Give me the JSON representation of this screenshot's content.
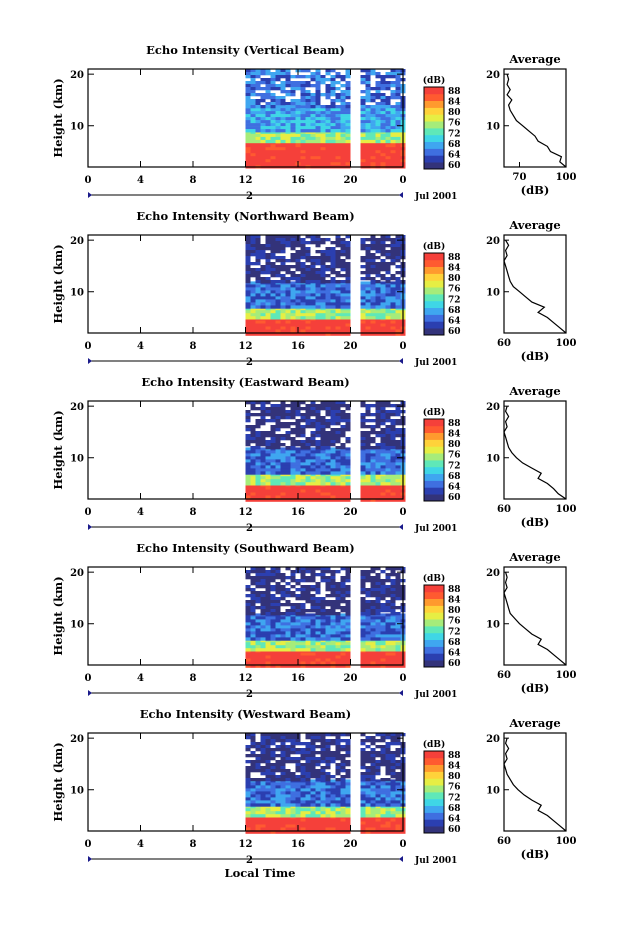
{
  "x_label": "Local Time",
  "colors": {
    "colorbar": [
      "#33337a",
      "#2b3fb0",
      "#3f6fe0",
      "#3fa6f0",
      "#3fd6e6",
      "#5fe8b8",
      "#a6ec7a",
      "#e6ee44",
      "#ffd23a",
      "#ff9a2e",
      "#ff5a30",
      "#f5403a"
    ],
    "profile_line": "#000000"
  },
  "chart_data": [
    {
      "type": "heatmap",
      "title": "Echo Intensity (Vertical Beam)",
      "ylabel": "Height (km)",
      "x_ticks": [
        "0",
        "4",
        "8",
        "12",
        "16",
        "20",
        "0"
      ],
      "y_ticks": [
        "20",
        "10"
      ],
      "date_marker": "2",
      "date_label": "Jul 2001",
      "colorbar_unit": "(dB)",
      "colorbar_ticks": [
        "88",
        "84",
        "80",
        "76",
        "72",
        "68",
        "64",
        "60"
      ],
      "data_start_hour": 12,
      "gap_hours": [
        20.0,
        20.6
      ],
      "layers": [
        {
          "from_km": 2,
          "to_km": 7,
          "level": "88"
        },
        {
          "from_km": 7,
          "to_km": 9,
          "level": "76"
        },
        {
          "from_km": 9,
          "to_km": 14,
          "level": "68"
        },
        {
          "from_km": 14,
          "to_km": 21,
          "level": "64"
        }
      ],
      "profile": {
        "title": "Average",
        "x_ticks": [
          "70",
          "100"
        ],
        "y_ticks": [
          "20",
          "10"
        ],
        "xlabel": "(dB)",
        "xlim": [
          60,
          100
        ],
        "heights_km": [
          2,
          3,
          4,
          5,
          6,
          7,
          8,
          9,
          10,
          11,
          12,
          13,
          14,
          15,
          16,
          17,
          18,
          19,
          20
        ],
        "values_db": [
          100,
          96,
          97,
          90,
          88,
          82,
          80,
          76,
          72,
          68,
          66,
          64,
          63,
          65,
          62,
          64,
          62,
          63,
          62
        ]
      }
    },
    {
      "type": "heatmap",
      "title": "Echo Intensity (Northward Beam)",
      "ylabel": "Height (km)",
      "x_ticks": [
        "0",
        "4",
        "8",
        "12",
        "16",
        "20",
        "0"
      ],
      "y_ticks": [
        "20",
        "10"
      ],
      "date_marker": "2",
      "date_label": "Jul 2001",
      "colorbar_unit": "(dB)",
      "colorbar_ticks": [
        "88",
        "84",
        "80",
        "76",
        "72",
        "68",
        "64",
        "60"
      ],
      "data_start_hour": 12,
      "gap_hours": [
        20.0,
        20.6
      ],
      "layers": [
        {
          "from_km": 2,
          "to_km": 5,
          "level": "88"
        },
        {
          "from_km": 5,
          "to_km": 7,
          "level": "76"
        },
        {
          "from_km": 7,
          "to_km": 12,
          "level": "64"
        },
        {
          "from_km": 12,
          "to_km": 21,
          "level": "60"
        }
      ],
      "profile": {
        "title": "Average",
        "x_ticks": [
          "60",
          "100"
        ],
        "y_ticks": [
          "20",
          "10"
        ],
        "xlabel": "(dB)",
        "xlim": [
          60,
          100
        ],
        "heights_km": [
          2,
          3,
          4,
          5,
          6,
          7,
          8,
          9,
          10,
          11,
          12,
          13,
          14,
          15,
          16,
          17,
          18,
          19,
          20
        ],
        "values_db": [
          100,
          96,
          92,
          88,
          82,
          86,
          78,
          74,
          70,
          66,
          64,
          63,
          62,
          61,
          60,
          62,
          61,
          63,
          61
        ]
      }
    },
    {
      "type": "heatmap",
      "title": "Echo Intensity (Eastward Beam)",
      "ylabel": "Height (km)",
      "x_ticks": [
        "0",
        "4",
        "8",
        "12",
        "16",
        "20",
        "0"
      ],
      "y_ticks": [
        "20",
        "10"
      ],
      "date_marker": "2",
      "date_label": "Jul 2001",
      "colorbar_unit": "(dB)",
      "colorbar_ticks": [
        "88",
        "84",
        "80",
        "76",
        "72",
        "68",
        "64",
        "60"
      ],
      "data_start_hour": 12,
      "gap_hours": [
        20.0,
        20.6
      ],
      "layers": [
        {
          "from_km": 2,
          "to_km": 5,
          "level": "88"
        },
        {
          "from_km": 5,
          "to_km": 7,
          "level": "76"
        },
        {
          "from_km": 7,
          "to_km": 12,
          "level": "64"
        },
        {
          "from_km": 12,
          "to_km": 21,
          "level": "60"
        }
      ],
      "profile": {
        "title": "Average",
        "x_ticks": [
          "60",
          "100"
        ],
        "y_ticks": [
          "20",
          "10"
        ],
        "xlabel": "(dB)",
        "xlim": [
          60,
          100
        ],
        "heights_km": [
          2,
          3,
          4,
          5,
          6,
          7,
          8,
          9,
          10,
          11,
          12,
          13,
          14,
          15,
          16,
          17,
          18,
          19,
          20
        ],
        "values_db": [
          100,
          95,
          92,
          88,
          82,
          84,
          78,
          72,
          68,
          65,
          63,
          62,
          61,
          60,
          62,
          61,
          63,
          61,
          62
        ]
      }
    },
    {
      "type": "heatmap",
      "title": "Echo Intensity (Southward Beam)",
      "ylabel": "Height (km)",
      "x_ticks": [
        "0",
        "4",
        "8",
        "12",
        "16",
        "20",
        "0"
      ],
      "y_ticks": [
        "20",
        "10"
      ],
      "date_marker": "2",
      "date_label": "Jul 2001",
      "colorbar_unit": "(dB)",
      "colorbar_ticks": [
        "88",
        "84",
        "80",
        "76",
        "72",
        "68",
        "64",
        "60"
      ],
      "data_start_hour": 12,
      "gap_hours": [
        20.0,
        20.6
      ],
      "layers": [
        {
          "from_km": 2,
          "to_km": 5,
          "level": "88"
        },
        {
          "from_km": 5,
          "to_km": 7,
          "level": "76"
        },
        {
          "from_km": 7,
          "to_km": 12,
          "level": "64"
        },
        {
          "from_km": 12,
          "to_km": 21,
          "level": "60"
        }
      ],
      "profile": {
        "title": "Average",
        "x_ticks": [
          "60",
          "100"
        ],
        "y_ticks": [
          "20",
          "10"
        ],
        "xlabel": "(dB)",
        "xlim": [
          60,
          100
        ],
        "heights_km": [
          2,
          3,
          4,
          5,
          6,
          7,
          8,
          9,
          10,
          11,
          12,
          13,
          14,
          15,
          16,
          17,
          18,
          19,
          20
        ],
        "values_db": [
          100,
          96,
          92,
          88,
          82,
          84,
          78,
          74,
          70,
          67,
          64,
          63,
          62,
          61,
          60,
          62,
          61,
          62,
          61
        ]
      }
    },
    {
      "type": "heatmap",
      "title": "Echo Intensity (Westward Beam)",
      "ylabel": "Height (km)",
      "x_ticks": [
        "0",
        "4",
        "8",
        "12",
        "16",
        "20",
        "0"
      ],
      "y_ticks": [
        "20",
        "10"
      ],
      "date_marker": "2",
      "date_label": "Jul 2001",
      "colorbar_unit": "(dB)",
      "colorbar_ticks": [
        "88",
        "84",
        "80",
        "76",
        "72",
        "68",
        "64",
        "60"
      ],
      "data_start_hour": 12,
      "gap_hours": [
        20.0,
        20.6
      ],
      "layers": [
        {
          "from_km": 2,
          "to_km": 5,
          "level": "88"
        },
        {
          "from_km": 5,
          "to_km": 7,
          "level": "76"
        },
        {
          "from_km": 7,
          "to_km": 12,
          "level": "64"
        },
        {
          "from_km": 12,
          "to_km": 21,
          "level": "60"
        }
      ],
      "profile": {
        "title": "Average",
        "x_ticks": [
          "60",
          "100"
        ],
        "y_ticks": [
          "20",
          "10"
        ],
        "xlabel": "(dB)",
        "xlim": [
          60,
          100
        ],
        "heights_km": [
          2,
          3,
          4,
          5,
          6,
          7,
          8,
          9,
          10,
          11,
          12,
          13,
          14,
          15,
          16,
          17,
          18,
          19,
          20
        ],
        "values_db": [
          100,
          96,
          92,
          88,
          82,
          84,
          78,
          73,
          69,
          66,
          64,
          62,
          61,
          60,
          62,
          61,
          63,
          61,
          62
        ]
      }
    }
  ]
}
